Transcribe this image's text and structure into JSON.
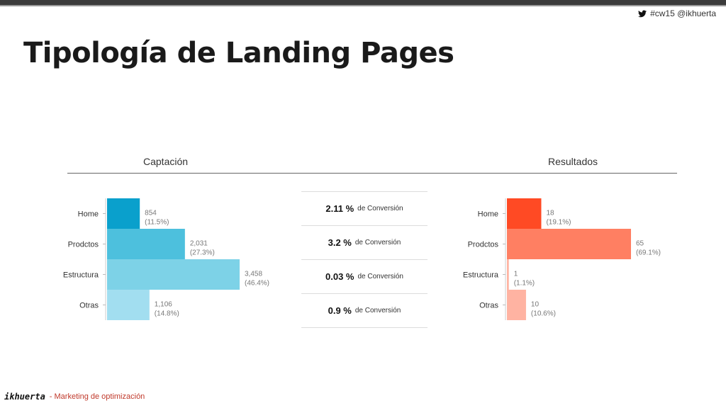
{
  "header": {
    "handle": "#cw15  @ikhuerta",
    "twitter_icon": "twitter-bird-icon"
  },
  "title": "Tipología de Landing Pages",
  "sections": {
    "left": "Captación",
    "right": "Resultados"
  },
  "conversions": [
    {
      "value": "2.11 %",
      "text": "de Conversión"
    },
    {
      "value": "3.2 %",
      "text": "de Conversión"
    },
    {
      "value": "0.03 %",
      "text": "de Conversión"
    },
    {
      "value": "0.9 %",
      "text": "de Conversión"
    }
  ],
  "footer": {
    "logo": "ikhuerta",
    "text": "- Marketing de optimización"
  },
  "chart_data": [
    {
      "type": "bar",
      "title": "Captación",
      "categories": [
        "Home",
        "Prodctos",
        "Estructura",
        "Otras"
      ],
      "values": [
        854,
        2031,
        3458,
        1106
      ],
      "value_labels": [
        "854",
        "2,031",
        "3,458",
        "1,106"
      ],
      "percent_labels": [
        "(11.5%)",
        "(27.3%)",
        "(46.4%)",
        "(14.8%)"
      ],
      "colors": [
        "#0aa0cc",
        "#4dc0dd",
        "#7dd2e7",
        "#a2def0"
      ],
      "xlim": [
        0,
        3458
      ]
    },
    {
      "type": "bar",
      "title": "Resultados",
      "categories": [
        "Home",
        "Prodctos",
        "Estructura",
        "Otras"
      ],
      "values": [
        18,
        65,
        1,
        10
      ],
      "value_labels": [
        "18",
        "65",
        "1",
        "10"
      ],
      "percent_labels": [
        "(19.1%)",
        "(69.1%)",
        "(1.1%)",
        "(10.6%)"
      ],
      "colors": [
        "#ff4a24",
        "#ff7f62",
        "#ffb3a2",
        "#ffb3a2"
      ],
      "xlim": [
        0,
        65
      ]
    }
  ]
}
